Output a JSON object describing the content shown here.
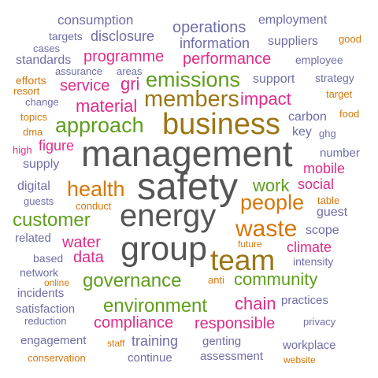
{
  "colors": {
    "gray": "#555555",
    "brown": "#9b7614",
    "orange": "#d6770a",
    "green": "#5e9e1c",
    "pink": "#de2d8a",
    "slate": "#6e6ea6",
    "navy": "#565696"
  },
  "words": [
    "management",
    "safety",
    "energy",
    "group",
    "business",
    "team",
    "members",
    "waste",
    "people",
    "emissions",
    "approach",
    "health",
    "customer",
    "governance",
    "environment",
    "community",
    "impact",
    "compliance",
    "responsible",
    "work",
    "service",
    "material",
    "programme",
    "performance",
    "chain",
    "operations",
    "information",
    "water",
    "data",
    "climate",
    "training",
    "gri",
    "figure",
    "social",
    "mobile",
    "disclosure",
    "consumption",
    "employment",
    "suppliers",
    "targets",
    "standards",
    "support",
    "carbon",
    "key",
    "supply",
    "digital",
    "guest",
    "scope",
    "number",
    "strategy",
    "employee",
    "good",
    "cases",
    "areas",
    "assurance",
    "efforts",
    "resort",
    "change",
    "topics",
    "dma",
    "high",
    "ghg",
    "food",
    "target",
    "guests",
    "conduct",
    "table",
    "related",
    "future",
    "intensity",
    "based",
    "network",
    "online",
    "anti",
    "incidents",
    "practices",
    "satisfaction",
    "reduction",
    "privacy",
    "engagement",
    "staff",
    "genting",
    "workplace",
    "conservation",
    "continue",
    "assessment",
    "website"
  ]
}
